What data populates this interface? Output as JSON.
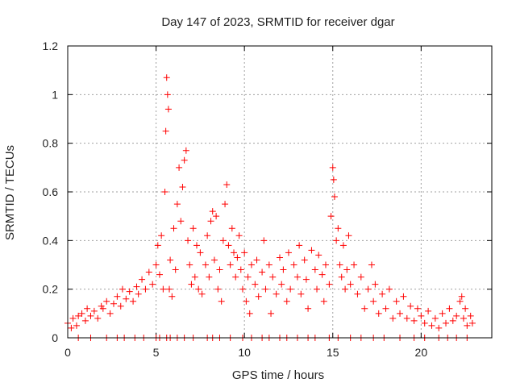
{
  "chart_data": {
    "type": "scatter",
    "title": "Day 147 of 2023, SRMTID for receiver dgar",
    "xlabel": "GPS time / hours",
    "ylabel": "SRMTID / TECUs",
    "xlim": [
      0,
      24
    ],
    "ylim": [
      0,
      1.2
    ],
    "xticks": [
      0,
      5,
      10,
      15,
      20
    ],
    "yticks": [
      0,
      0.2,
      0.4,
      0.6,
      0.8,
      1,
      1.2
    ],
    "xtick_labels": [
      "0",
      "5",
      "10",
      "15",
      "20"
    ],
    "ytick_labels": [
      "0",
      "0.2",
      "0.4",
      "0.6",
      "0.8",
      "1",
      "1.2"
    ],
    "grid": true,
    "marker": "+",
    "color": "#ff0000",
    "series": [
      {
        "name": "SRMTID",
        "points": [
          [
            0.0,
            0.06
          ],
          [
            0.2,
            0.04
          ],
          [
            0.3,
            0.08
          ],
          [
            0.5,
            0.05
          ],
          [
            0.6,
            0.09
          ],
          [
            0.8,
            0.1
          ],
          [
            1.0,
            0.07
          ],
          [
            1.1,
            0.12
          ],
          [
            1.3,
            0.09
          ],
          [
            1.5,
            0.11
          ],
          [
            1.7,
            0.08
          ],
          [
            1.9,
            0.13
          ],
          [
            2.0,
            0.12
          ],
          [
            2.2,
            0.15
          ],
          [
            2.4,
            0.1
          ],
          [
            2.6,
            0.14
          ],
          [
            2.8,
            0.17
          ],
          [
            3.0,
            0.13
          ],
          [
            3.1,
            0.2
          ],
          [
            3.3,
            0.16
          ],
          [
            3.5,
            0.19
          ],
          [
            3.7,
            0.15
          ],
          [
            3.9,
            0.21
          ],
          [
            4.0,
            0.18
          ],
          [
            4.2,
            0.24
          ],
          [
            4.4,
            0.2
          ],
          [
            4.6,
            0.27
          ],
          [
            4.8,
            0.22
          ],
          [
            5.0,
            0.3
          ],
          [
            5.1,
            0.38
          ],
          [
            5.2,
            0.26
          ],
          [
            5.3,
            0.42
          ],
          [
            5.4,
            0.2
          ],
          [
            5.5,
            0.6
          ],
          [
            5.55,
            0.85
          ],
          [
            5.6,
            1.07
          ],
          [
            5.65,
            1.0
          ],
          [
            5.7,
            0.94
          ],
          [
            5.75,
            0.2
          ],
          [
            5.8,
            0.32
          ],
          [
            5.9,
            0.17
          ],
          [
            6.0,
            0.45
          ],
          [
            6.1,
            0.28
          ],
          [
            6.2,
            0.55
          ],
          [
            6.3,
            0.7
          ],
          [
            6.4,
            0.48
          ],
          [
            6.5,
            0.62
          ],
          [
            6.6,
            0.73
          ],
          [
            6.7,
            0.77
          ],
          [
            6.8,
            0.4
          ],
          [
            6.9,
            0.3
          ],
          [
            7.0,
            0.22
          ],
          [
            7.1,
            0.45
          ],
          [
            7.2,
            0.25
          ],
          [
            7.3,
            0.38
          ],
          [
            7.4,
            0.2
          ],
          [
            7.5,
            0.35
          ],
          [
            7.6,
            0.18
          ],
          [
            7.8,
            0.3
          ],
          [
            7.9,
            0.42
          ],
          [
            8.0,
            0.25
          ],
          [
            8.1,
            0.48
          ],
          [
            8.2,
            0.52
          ],
          [
            8.3,
            0.32
          ],
          [
            8.4,
            0.5
          ],
          [
            8.5,
            0.2
          ],
          [
            8.6,
            0.28
          ],
          [
            8.7,
            0.15
          ],
          [
            8.8,
            0.4
          ],
          [
            8.9,
            0.55
          ],
          [
            9.0,
            0.63
          ],
          [
            9.1,
            0.38
          ],
          [
            9.2,
            0.3
          ],
          [
            9.3,
            0.45
          ],
          [
            9.4,
            0.35
          ],
          [
            9.5,
            0.25
          ],
          [
            9.6,
            0.33
          ],
          [
            9.7,
            0.42
          ],
          [
            9.8,
            0.28
          ],
          [
            9.9,
            0.2
          ],
          [
            10.0,
            0.35
          ],
          [
            10.1,
            0.15
          ],
          [
            10.2,
            0.25
          ],
          [
            10.3,
            0.1
          ],
          [
            10.4,
            0.3
          ],
          [
            10.6,
            0.22
          ],
          [
            10.7,
            0.32
          ],
          [
            10.8,
            0.17
          ],
          [
            11.0,
            0.27
          ],
          [
            11.1,
            0.4
          ],
          [
            11.2,
            0.2
          ],
          [
            11.4,
            0.3
          ],
          [
            11.5,
            0.1
          ],
          [
            11.6,
            0.25
          ],
          [
            11.8,
            0.18
          ],
          [
            12.0,
            0.33
          ],
          [
            12.1,
            0.22
          ],
          [
            12.2,
            0.28
          ],
          [
            12.4,
            0.15
          ],
          [
            12.5,
            0.35
          ],
          [
            12.6,
            0.2
          ],
          [
            12.8,
            0.3
          ],
          [
            13.0,
            0.25
          ],
          [
            13.1,
            0.38
          ],
          [
            13.2,
            0.18
          ],
          [
            13.4,
            0.32
          ],
          [
            13.5,
            0.24
          ],
          [
            13.6,
            0.12
          ],
          [
            13.8,
            0.36
          ],
          [
            14.0,
            0.28
          ],
          [
            14.1,
            0.2
          ],
          [
            14.2,
            0.34
          ],
          [
            14.4,
            0.26
          ],
          [
            14.5,
            0.15
          ],
          [
            14.6,
            0.3
          ],
          [
            14.8,
            0.22
          ],
          [
            14.9,
            0.5
          ],
          [
            15.0,
            0.7
          ],
          [
            15.05,
            0.65
          ],
          [
            15.1,
            0.58
          ],
          [
            15.2,
            0.4
          ],
          [
            15.3,
            0.45
          ],
          [
            15.4,
            0.3
          ],
          [
            15.5,
            0.25
          ],
          [
            15.6,
            0.38
          ],
          [
            15.7,
            0.2
          ],
          [
            15.8,
            0.28
          ],
          [
            15.9,
            0.42
          ],
          [
            16.0,
            0.22
          ],
          [
            16.2,
            0.3
          ],
          [
            16.4,
            0.18
          ],
          [
            16.6,
            0.25
          ],
          [
            16.8,
            0.12
          ],
          [
            17.0,
            0.2
          ],
          [
            17.2,
            0.3
          ],
          [
            17.3,
            0.15
          ],
          [
            17.4,
            0.22
          ],
          [
            17.6,
            0.1
          ],
          [
            17.8,
            0.18
          ],
          [
            18.0,
            0.12
          ],
          [
            18.2,
            0.2
          ],
          [
            18.4,
            0.08
          ],
          [
            18.6,
            0.15
          ],
          [
            18.8,
            0.1
          ],
          [
            19.0,
            0.17
          ],
          [
            19.2,
            0.08
          ],
          [
            19.4,
            0.13
          ],
          [
            19.6,
            0.07
          ],
          [
            19.8,
            0.12
          ],
          [
            20.0,
            0.09
          ],
          [
            20.2,
            0.06
          ],
          [
            20.4,
            0.11
          ],
          [
            20.6,
            0.05
          ],
          [
            20.8,
            0.08
          ],
          [
            21.0,
            0.04
          ],
          [
            21.2,
            0.1
          ],
          [
            21.4,
            0.06
          ],
          [
            21.6,
            0.12
          ],
          [
            21.8,
            0.07
          ],
          [
            22.0,
            0.09
          ],
          [
            22.2,
            0.15
          ],
          [
            22.3,
            0.17
          ],
          [
            22.4,
            0.08
          ],
          [
            22.5,
            0.12
          ],
          [
            22.6,
            0.05
          ],
          [
            22.8,
            0.09
          ],
          [
            22.9,
            0.06
          ],
          [
            0.6,
            0.0
          ],
          [
            1.3,
            0.0
          ],
          [
            2.2,
            0.0
          ],
          [
            2.8,
            0.0
          ],
          [
            3.2,
            0.0
          ],
          [
            3.8,
            0.0
          ],
          [
            4.3,
            0.0
          ],
          [
            5.0,
            0.0
          ],
          [
            5.2,
            0.0
          ],
          [
            5.6,
            0.0
          ],
          [
            5.8,
            0.0
          ],
          [
            6.2,
            0.0
          ],
          [
            6.6,
            0.0
          ],
          [
            7.1,
            0.0
          ],
          [
            7.9,
            0.0
          ],
          [
            8.2,
            0.0
          ],
          [
            8.6,
            0.0
          ],
          [
            9.2,
            0.0
          ],
          [
            9.9,
            0.0
          ],
          [
            10.4,
            0.0
          ],
          [
            11.0,
            0.0
          ],
          [
            11.4,
            0.0
          ],
          [
            12.0,
            0.0
          ],
          [
            12.4,
            0.0
          ],
          [
            13.0,
            0.0
          ],
          [
            13.6,
            0.0
          ],
          [
            14.0,
            0.0
          ],
          [
            14.8,
            0.0
          ],
          [
            15.3,
            0.0
          ],
          [
            16.0,
            0.0
          ],
          [
            16.6,
            0.0
          ],
          [
            17.3,
            0.0
          ],
          [
            17.9,
            0.0
          ],
          [
            18.8,
            0.0
          ],
          [
            19.6,
            0.0
          ],
          [
            20.2,
            0.0
          ],
          [
            21.0,
            0.0
          ],
          [
            21.5,
            0.0
          ],
          [
            22.0,
            0.0
          ],
          [
            22.6,
            0.0
          ]
        ]
      }
    ]
  }
}
